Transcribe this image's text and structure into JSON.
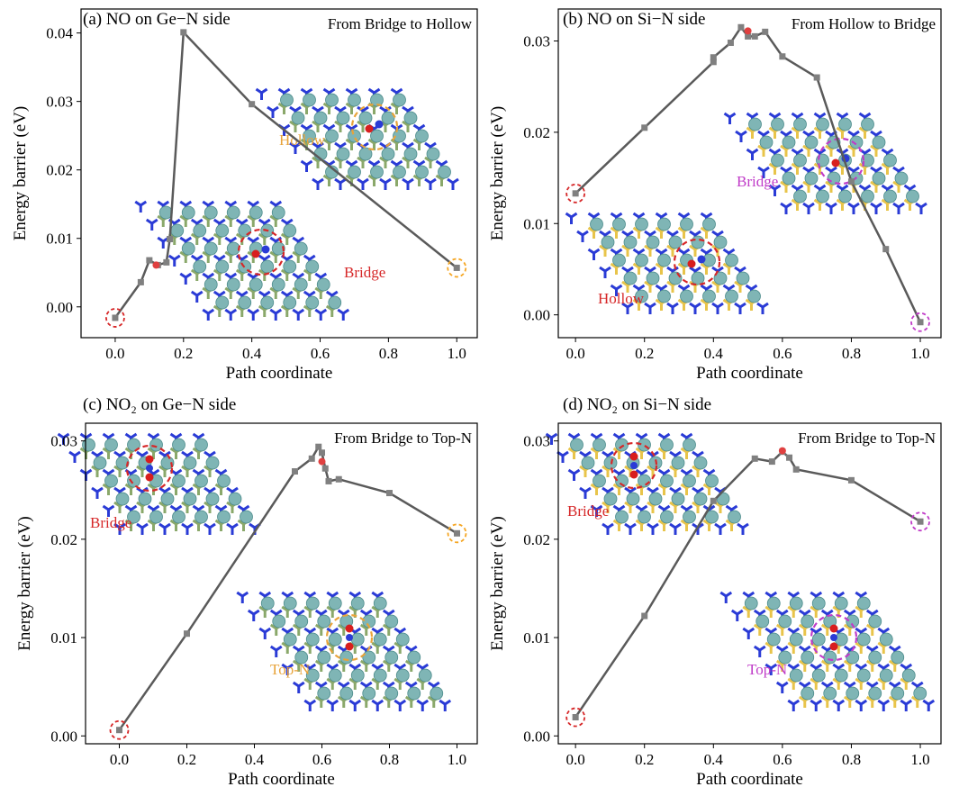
{
  "chart_data": [
    {
      "panel": "a",
      "title": "(a) NO on Ge−N side",
      "type": "line",
      "annotation": "From Bridge to Hollow",
      "xlabel": "Path coordinate",
      "ylabel": "Energy barrier (eV)",
      "xlim": [
        -0.1,
        1.06
      ],
      "ylim": [
        -0.0045,
        0.0435
      ],
      "xticks": [
        "0.0",
        "0.2",
        "0.4",
        "0.6",
        "0.8",
        "1.0"
      ],
      "yticks": [
        "0.00",
        "0.01",
        "0.02",
        "0.03",
        "0.04"
      ],
      "x": [
        0.0,
        0.075,
        0.1,
        0.125,
        0.15,
        0.16,
        0.2,
        0.4,
        1.0
      ],
      "y": [
        -0.0016,
        0.0036,
        0.0068,
        0.0061,
        0.0065,
        0.0099,
        0.0401,
        0.0296,
        0.0057
      ],
      "highlight": {
        "x": 0.12,
        "y": 0.0061
      },
      "start_circle_color": "#d62728",
      "end_circle_color": "#f5a623",
      "sites": [
        {
          "label": "Bridge",
          "color": "#d62728",
          "substrate": "#8aa86a",
          "bonds": "NO"
        },
        {
          "label": "Hollow",
          "color": "#e8a33a",
          "substrate": "#8aa86a",
          "bonds": "NO"
        }
      ]
    },
    {
      "panel": "b",
      "title": "(b) NO on Si−N side",
      "type": "line",
      "annotation": "From Hollow to Bridge",
      "xlabel": "Path coordinate",
      "ylabel": "Energy barrier (eV)",
      "xlim": [
        -0.05,
        1.06
      ],
      "ylim": [
        -0.0025,
        0.0335
      ],
      "xticks": [
        "0.0",
        "0.2",
        "0.4",
        "0.6",
        "0.8",
        "1.0"
      ],
      "yticks": [
        "0.00",
        "0.01",
        "0.02",
        "0.03"
      ],
      "x": [
        0.0,
        0.2,
        0.4,
        0.4,
        0.45,
        0.48,
        0.5,
        0.52,
        0.55,
        0.6,
        0.7,
        0.8,
        0.9,
        1.0
      ],
      "y": [
        0.0133,
        0.0205,
        0.0277,
        0.0282,
        0.0298,
        0.0315,
        0.0305,
        0.0305,
        0.031,
        0.0283,
        0.026,
        0.0146,
        0.0072,
        -0.0008
      ],
      "highlight": {
        "x": 0.5,
        "y": 0.0311
      },
      "start_circle_color": "#d62728",
      "end_circle_color": "#c03cc8",
      "sites": [
        {
          "label": "Hollow",
          "color": "#d62728",
          "substrate": "#e8c44a",
          "bonds": "NO"
        },
        {
          "label": "Bridge",
          "color": "#c03cc8",
          "substrate": "#e8c44a",
          "bonds": "NO"
        }
      ]
    },
    {
      "panel": "c",
      "title": "(c) NO₂ on Ge−N side",
      "type": "line",
      "annotation": "From Bridge to Top-N",
      "xlabel": "Path coordinate",
      "ylabel": "Energy barrier (eV)",
      "xlim": [
        -0.1,
        1.06
      ],
      "ylim": [
        -0.0008,
        0.0318
      ],
      "xticks": [
        "0.0",
        "0.2",
        "0.4",
        "0.6",
        "0.8",
        "1.0"
      ],
      "yticks": [
        "0.00",
        "0.01",
        "0.02",
        "0.03"
      ],
      "x": [
        0.0,
        0.2,
        0.52,
        0.57,
        0.59,
        0.6,
        0.61,
        0.62,
        0.65,
        0.8,
        1.0
      ],
      "y": [
        0.0006,
        0.0104,
        0.0269,
        0.0282,
        0.0294,
        0.0288,
        0.0272,
        0.0259,
        0.0261,
        0.0247,
        0.0206
      ],
      "highlight": {
        "x": 0.6,
        "y": 0.0279
      },
      "start_circle_color": "#d62728",
      "end_circle_color": "#f5a623",
      "sites": [
        {
          "label": "Bridge",
          "color": "#d62728",
          "substrate": "#8aa86a",
          "bonds": "NO2"
        },
        {
          "label": "Top-N",
          "color": "#e8a33a",
          "substrate": "#8aa86a",
          "bonds": "NO2"
        }
      ]
    },
    {
      "panel": "d",
      "title": "(d) NO₂ on Si−N side",
      "type": "line",
      "annotation": "From Bridge to Top-N",
      "xlabel": "Path coordinate",
      "ylabel": "Energy barrier (eV)",
      "xlim": [
        -0.05,
        1.06
      ],
      "ylim": [
        -0.0008,
        0.0318
      ],
      "xticks": [
        "0.0",
        "0.2",
        "0.4",
        "0.6",
        "0.8",
        "1.0"
      ],
      "yticks": [
        "0.00",
        "0.01",
        "0.02",
        "0.03"
      ],
      "x": [
        0.0,
        0.2,
        0.4,
        0.52,
        0.57,
        0.6,
        0.62,
        0.64,
        0.8,
        1.0
      ],
      "y": [
        0.0019,
        0.0122,
        0.0239,
        0.0282,
        0.0279,
        0.0289,
        0.0283,
        0.0271,
        0.026,
        0.0218
      ],
      "highlight": {
        "x": 0.6,
        "y": 0.029
      },
      "start_circle_color": "#d62728",
      "end_circle_color": "#c03cc8",
      "sites": [
        {
          "label": "Bridge",
          "color": "#d62728",
          "substrate": "#e8c44a",
          "bonds": "NO2"
        },
        {
          "label": "Top-N",
          "color": "#c03cc8",
          "substrate": "#e8c44a",
          "bonds": "NO2"
        }
      ]
    }
  ],
  "colors": {
    "line": "#5a5a5a",
    "marker": "#808080",
    "highlight": "#e04040",
    "sphere": "#7fb5b5",
    "nitrogen": "#2a3bd6",
    "oxygen": "#d81e1e"
  }
}
